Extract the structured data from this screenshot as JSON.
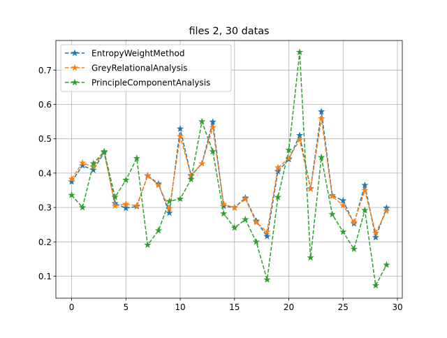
{
  "chart_data": {
    "type": "line",
    "title": "files 2, 30 datas",
    "xlabel": "",
    "ylabel": "",
    "xlim": [
      -1.45,
      30.45
    ],
    "ylim": [
      0.036,
      0.786
    ],
    "x_ticks": [
      0,
      5,
      10,
      15,
      20,
      25,
      30
    ],
    "y_ticks": [
      0.1,
      0.2,
      0.3,
      0.4,
      0.5,
      0.6,
      0.7
    ],
    "grid": true,
    "legend_position": "upper-left",
    "x": [
      0,
      1,
      2,
      3,
      4,
      5,
      6,
      7,
      8,
      9,
      10,
      11,
      12,
      13,
      14,
      15,
      16,
      17,
      18,
      19,
      20,
      21,
      22,
      23,
      24,
      25,
      26,
      27,
      28,
      29
    ],
    "series": [
      {
        "name": "EntropyWeightMethod",
        "color": "#1f77b4",
        "values": [
          0.375,
          0.422,
          0.409,
          0.46,
          0.312,
          0.298,
          0.303,
          0.393,
          0.369,
          0.284,
          0.529,
          0.392,
          0.428,
          0.549,
          0.304,
          0.3,
          0.328,
          0.261,
          0.216,
          0.405,
          0.44,
          0.51,
          0.355,
          0.579,
          0.335,
          0.32,
          0.253,
          0.365,
          0.213,
          0.299
        ]
      },
      {
        "name": "GreyRelationalAnalysis",
        "color": "#ff7f0e",
        "values": [
          0.383,
          0.43,
          0.418,
          0.462,
          0.305,
          0.31,
          0.305,
          0.392,
          0.365,
          0.297,
          0.507,
          0.394,
          0.428,
          0.533,
          0.31,
          0.299,
          0.325,
          0.257,
          0.229,
          0.416,
          0.443,
          0.497,
          0.354,
          0.559,
          0.333,
          0.306,
          0.257,
          0.35,
          0.226,
          0.29
        ]
      },
      {
        "name": "PrincipleComponentAnalysis",
        "color": "#2ca02c",
        "values": [
          0.336,
          0.3,
          0.428,
          0.463,
          0.33,
          0.38,
          0.443,
          0.191,
          0.233,
          0.318,
          0.325,
          0.382,
          0.55,
          0.463,
          0.282,
          0.241,
          0.265,
          0.2,
          0.09,
          0.33,
          0.467,
          0.752,
          0.154,
          0.446,
          0.28,
          0.229,
          0.179,
          0.292,
          0.073,
          0.133
        ]
      }
    ]
  }
}
